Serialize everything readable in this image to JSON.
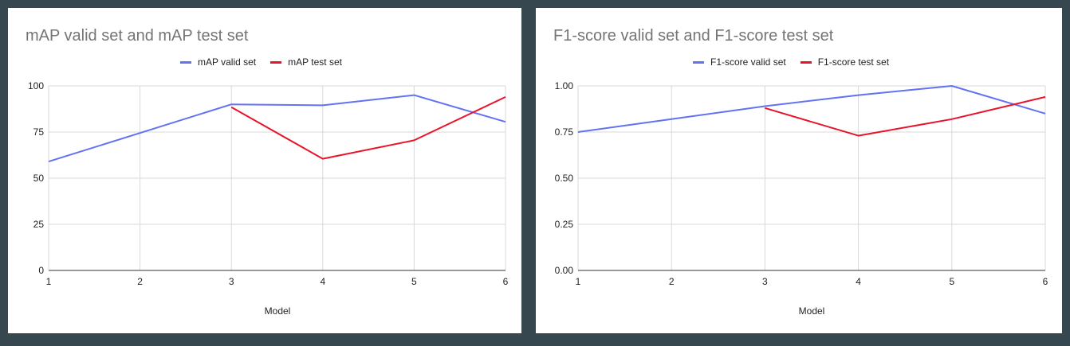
{
  "chart_data": [
    {
      "type": "line",
      "title": "mAP valid set and mAP test set",
      "xlabel": "Model",
      "ylabel": "",
      "x": [
        1,
        2,
        3,
        4,
        5,
        6
      ],
      "x_ticks": [
        "1",
        "2",
        "3",
        "4",
        "5",
        "6"
      ],
      "ylim": [
        0,
        100
      ],
      "y_ticks": [
        "0",
        "25",
        "50",
        "75",
        "100"
      ],
      "y_tick_values": [
        0,
        25,
        50,
        75,
        100
      ],
      "grid": true,
      "legend_position": "top",
      "series": [
        {
          "name": "mAP valid set",
          "color": "#6371f5",
          "values": [
            59,
            74.5,
            90,
            89.5,
            95,
            80.5
          ]
        },
        {
          "name": "mAP test set",
          "color": "#e8142b",
          "values": [
            null,
            null,
            88.5,
            60.5,
            70.5,
            94
          ]
        }
      ]
    },
    {
      "type": "line",
      "title": "F1-score valid set and F1-score test set",
      "xlabel": "Model",
      "ylabel": "",
      "x": [
        1,
        2,
        3,
        4,
        5,
        6
      ],
      "x_ticks": [
        "1",
        "2",
        "3",
        "4",
        "5",
        "6"
      ],
      "ylim": [
        0,
        1
      ],
      "y_ticks": [
        "0.00",
        "0.25",
        "0.50",
        "0.75",
        "1.00"
      ],
      "y_tick_values": [
        0,
        0.25,
        0.5,
        0.75,
        1
      ],
      "grid": true,
      "legend_position": "top",
      "series": [
        {
          "name": "F1-score valid set",
          "color": "#6371f5",
          "values": [
            0.75,
            0.82,
            0.89,
            0.95,
            1.0,
            0.85
          ]
        },
        {
          "name": "F1-score test set",
          "color": "#e8142b",
          "values": [
            null,
            null,
            0.88,
            0.73,
            0.82,
            0.94
          ]
        }
      ]
    }
  ]
}
